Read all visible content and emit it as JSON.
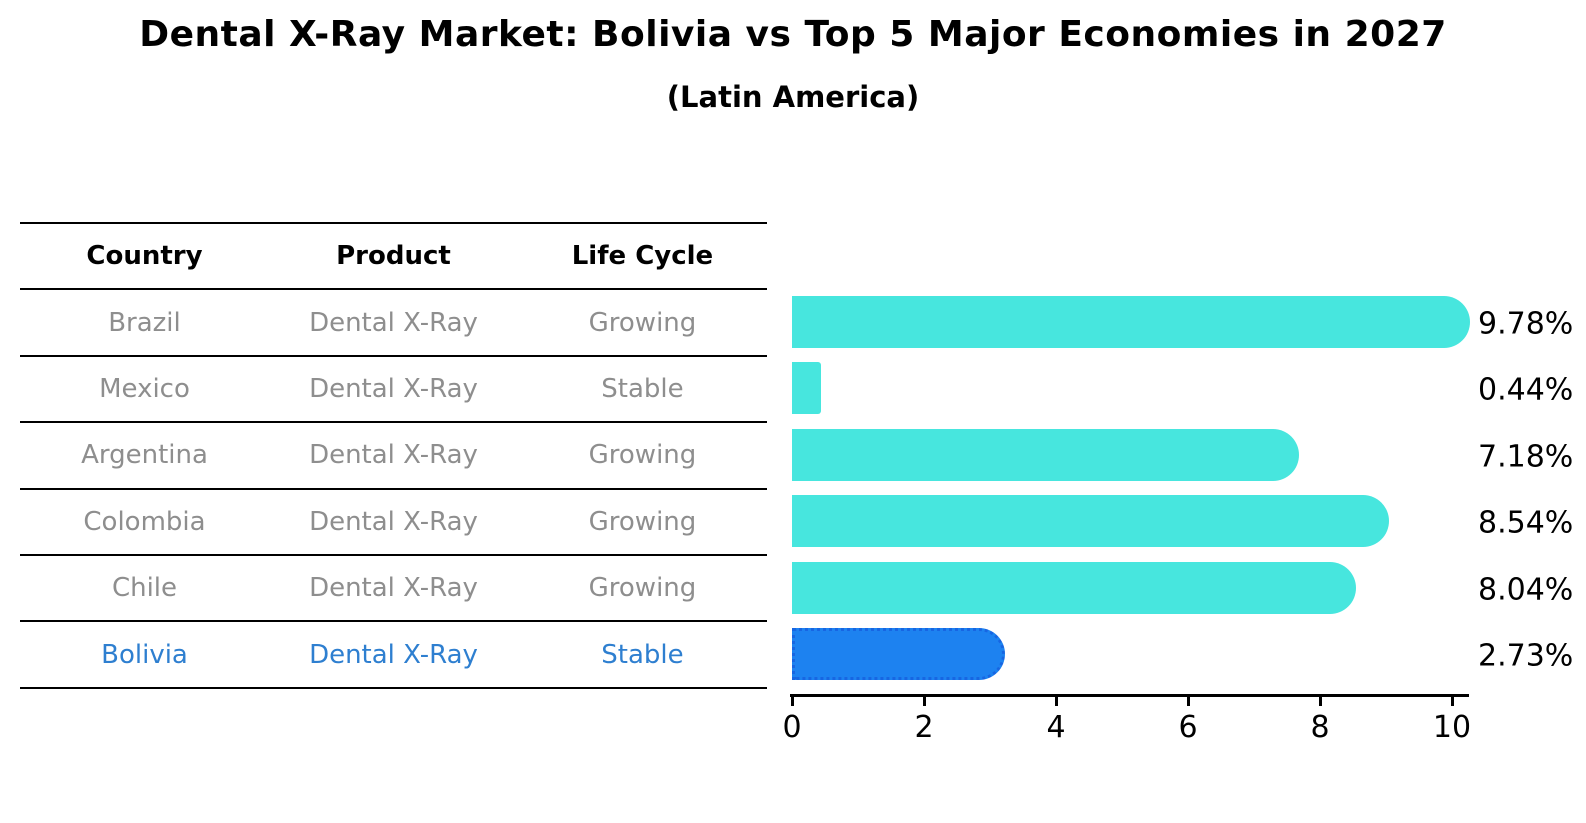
{
  "title": "Dental X-Ray Market: Bolivia vs Top 5 Major Economies in 2027",
  "subtitle": "(Latin America)",
  "table": {
    "headers": [
      "Country",
      "Product",
      "Life Cycle"
    ],
    "rows": [
      {
        "country": "Brazil",
        "product": "Dental X-Ray",
        "life_cycle": "Growing",
        "highlight": false
      },
      {
        "country": "Mexico",
        "product": "Dental X-Ray",
        "life_cycle": "Stable",
        "highlight": false
      },
      {
        "country": "Argentina",
        "product": "Dental X-Ray",
        "life_cycle": "Growing",
        "highlight": false
      },
      {
        "country": "Colombia",
        "product": "Dental X-Ray",
        "life_cycle": "Growing",
        "highlight": false
      },
      {
        "country": "Chile",
        "product": "Dental X-Ray",
        "life_cycle": "Growing",
        "highlight": false
      },
      {
        "country": "Bolivia",
        "product": "Dental X-Ray",
        "life_cycle": "Stable",
        "highlight": true
      }
    ]
  },
  "chart_data": {
    "type": "bar",
    "orientation": "horizontal",
    "title": "Dental X-Ray Market: Bolivia vs Top 5 Major Economies in 2027",
    "subtitle": "(Latin America)",
    "categories": [
      "Brazil",
      "Mexico",
      "Argentina",
      "Colombia",
      "Chile",
      "Bolivia"
    ],
    "values": [
      9.78,
      0.44,
      7.18,
      8.54,
      8.04,
      2.73
    ],
    "value_labels": [
      "9.78%",
      "0.44%",
      "7.18%",
      "8.54%",
      "8.04%",
      "2.73%"
    ],
    "xticks": [
      0,
      2,
      4,
      6,
      8,
      10
    ],
    "xlim": [
      0,
      10.3
    ],
    "grid": false,
    "legend": false,
    "bar_color": "#47e6de",
    "highlight_index": 5,
    "highlight_color": "#1d82f0",
    "highlight_border_color": "#1766e2"
  },
  "colors": {
    "background": "#ffffff",
    "text": "#000000",
    "muted_text": "#8e8e8e",
    "highlight_text": "#2e7fd0"
  }
}
